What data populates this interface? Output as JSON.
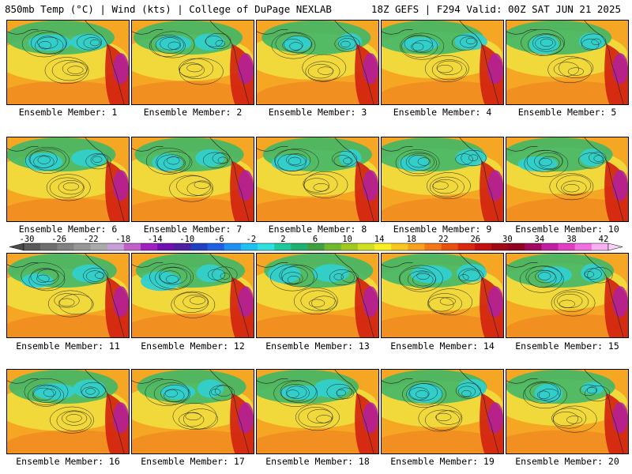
{
  "header": {
    "left": "850mb Temp (°C) | Wind (kts) | College of DuPage NEXLAB",
    "right": "18Z GEFS | F294 Valid: 00Z SAT JUN 21 2025"
  },
  "members": [
    "Ensemble Member: 1",
    "Ensemble Member: 2",
    "Ensemble Member: 3",
    "Ensemble Member: 4",
    "Ensemble Member: 5",
    "Ensemble Member: 6",
    "Ensemble Member: 7",
    "Ensemble Member: 8",
    "Ensemble Member: 9",
    "Ensemble Member: 10",
    "Ensemble Member: 11",
    "Ensemble Member: 12",
    "Ensemble Member: 13",
    "Ensemble Member: 14",
    "Ensemble Member: 15",
    "Ensemble Member: 16",
    "Ensemble Member: 17",
    "Ensemble Member: 18",
    "Ensemble Member: 19",
    "Ensemble Member: 20"
  ],
  "colorbar": {
    "ticks": [
      "-30",
      "-26",
      "-22",
      "-18",
      "-14",
      "-10",
      "-6",
      "-2",
      "2",
      "6",
      "10",
      "14",
      "18",
      "22",
      "26",
      "30",
      "34",
      "38",
      "42"
    ],
    "colors": [
      "#5a5a5a",
      "#6e6e6e",
      "#828282",
      "#969696",
      "#aaaaaa",
      "#c8a0d8",
      "#c060c8",
      "#a020c0",
      "#7010b0",
      "#5020a0",
      "#2040c0",
      "#2060e0",
      "#2090f0",
      "#20c0f0",
      "#30e0e0",
      "#20c8a0",
      "#20b070",
      "#40a040",
      "#70b830",
      "#a0c820",
      "#d0e020",
      "#f8f020",
      "#f8c820",
      "#f8a020",
      "#f07818",
      "#e85010",
      "#d82810",
      "#c01010",
      "#a00818",
      "#900020",
      "#a00860",
      "#c020a0",
      "#e040c0",
      "#f070e0",
      "#f8b0f0"
    ],
    "arrow_left_color": "#4a4a4a",
    "arrow_right_color": "#f8d0f8"
  },
  "map_colors": {
    "warm": "#f5a623",
    "hot": "#e8501a",
    "yellow": "#f0e040",
    "green": "#40b868",
    "cyan": "#30d0d0",
    "magenta": "#b020a0",
    "red": "#d02010"
  }
}
